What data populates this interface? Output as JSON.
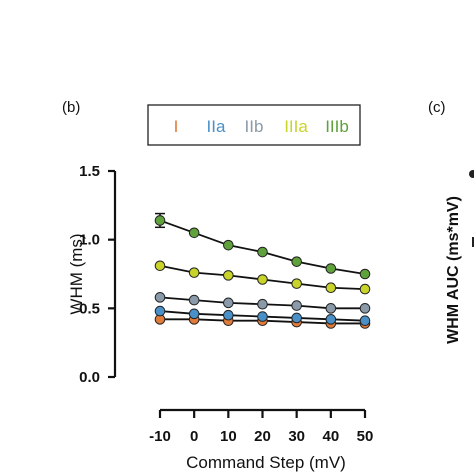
{
  "panels": {
    "left_label": "(b)",
    "right_label": "(c)"
  },
  "chart_data": {
    "type": "line",
    "xlabel": "Command Step (mV)",
    "ylabel": "WHM (ms)",
    "xlim": [
      -10,
      50
    ],
    "ylim": [
      0.0,
      1.5
    ],
    "x": [
      -10,
      0,
      10,
      20,
      30,
      40,
      50
    ],
    "x_tick_labels": [
      "-10",
      "0",
      "10",
      "20",
      "30",
      "40",
      "50"
    ],
    "y_ticks": [
      0.0,
      0.5,
      1.0,
      1.5
    ],
    "y_tick_labels": [
      "0.0",
      "0.5",
      "1.0",
      "1.5"
    ],
    "grid": false,
    "legend_placement": "top",
    "series": [
      {
        "name": "I",
        "color": "#e07b39",
        "values": [
          0.42,
          0.42,
          0.41,
          0.41,
          0.4,
          0.39,
          0.39
        ]
      },
      {
        "name": "IIa",
        "color": "#4a90c8",
        "values": [
          0.48,
          0.46,
          0.45,
          0.44,
          0.43,
          0.42,
          0.41
        ]
      },
      {
        "name": "IIb",
        "color": "#8a9aa8",
        "values": [
          0.58,
          0.56,
          0.54,
          0.53,
          0.52,
          0.5,
          0.5
        ]
      },
      {
        "name": "IIIa",
        "color": "#c8d42a",
        "values": [
          0.81,
          0.76,
          0.74,
          0.71,
          0.68,
          0.65,
          0.64
        ]
      },
      {
        "name": "IIIb",
        "color": "#5fa13a",
        "values": [
          1.14,
          1.05,
          0.96,
          0.91,
          0.84,
          0.79,
          0.75
        ]
      }
    ],
    "error_bars": [
      {
        "series": "IIIb",
        "x": -10,
        "err": 0.05
      }
    ]
  },
  "right_panel": {
    "ylabel": "WHM AUC (ms*mV)"
  }
}
